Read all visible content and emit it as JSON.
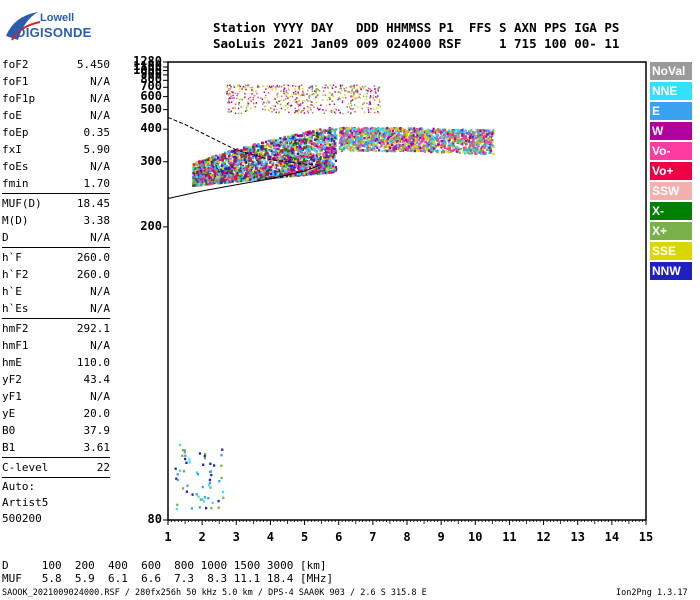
{
  "logo": {
    "line1": "Lowell",
    "line2": "DIGISONDE"
  },
  "header": {
    "line1": "Station YYYY DAY   DDD HHMMSS P1  FFS S AXN PPS IGA PS",
    "line2": "SaoLuis 2021 Jan09 009 024000 RSF     1 715 100 00- 11"
  },
  "params": {
    "group1": [
      {
        "k": "foF2",
        "v": "5.450"
      },
      {
        "k": "foF1",
        "v": "N/A"
      },
      {
        "k": "foF1p",
        "v": "N/A"
      },
      {
        "k": "foE",
        "v": "N/A"
      },
      {
        "k": "foEp",
        "v": "0.35"
      },
      {
        "k": "fxI",
        "v": "5.90"
      },
      {
        "k": "foEs",
        "v": "N/A"
      },
      {
        "k": "fmin",
        "v": "1.70"
      }
    ],
    "group2": [
      {
        "k": "MUF(D)",
        "v": "18.45"
      },
      {
        "k": "M(D)",
        "v": "3.38"
      },
      {
        "k": "D",
        "v": "N/A"
      }
    ],
    "group3": [
      {
        "k": "h`F",
        "v": "260.0"
      },
      {
        "k": "h`F2",
        "v": "260.0"
      },
      {
        "k": "h`E",
        "v": "N/A"
      },
      {
        "k": "h`Es",
        "v": "N/A"
      }
    ],
    "group4": [
      {
        "k": "hmF2",
        "v": "292.1"
      },
      {
        "k": "hmF1",
        "v": "N/A"
      },
      {
        "k": "hmE",
        "v": "110.0"
      },
      {
        "k": "yF2",
        "v": "43.4"
      },
      {
        "k": "yF1",
        "v": "N/A"
      },
      {
        "k": "yE",
        "v": "20.0"
      },
      {
        "k": "B0",
        "v": "37.9"
      },
      {
        "k": "B1",
        "v": "3.61"
      }
    ],
    "group5": [
      {
        "k": "C-level",
        "v": "22"
      }
    ],
    "auto": {
      "line1": "Auto:",
      "line2": "Artist5",
      "line3": "500200"
    }
  },
  "legend": [
    {
      "label": "NoVal",
      "color": "#9a9a9a"
    },
    {
      "label": "NNE",
      "color": "#33e0ff"
    },
    {
      "label": "E",
      "color": "#3aa0f0"
    },
    {
      "label": "W",
      "color": "#b0009e"
    },
    {
      "label": "Vo-",
      "color": "#ff3aa0"
    },
    {
      "label": "Vo+",
      "color": "#ee0044"
    },
    {
      "label": "SSW",
      "color": "#f4b0b0"
    },
    {
      "label": "X-",
      "color": "#008000"
    },
    {
      "label": "X+",
      "color": "#7ab04a"
    },
    {
      "label": "SSE",
      "color": "#d8d800"
    },
    {
      "label": "NNW",
      "color": "#2020c0"
    }
  ],
  "chart_data": {
    "type": "scatter",
    "title": "",
    "xlabel": "",
    "ylabel": "",
    "xlim": [
      1,
      15
    ],
    "ylim": [
      80,
      1280
    ],
    "xticks": [
      1,
      2,
      3,
      4,
      5,
      6,
      7,
      8,
      9,
      10,
      11,
      12,
      13,
      14,
      15
    ],
    "yticks": [
      80,
      200,
      300,
      400,
      500,
      600,
      700,
      800,
      900,
      1000,
      1100,
      1280
    ],
    "grid": false,
    "y_scale": "reciprocal",
    "series": [
      {
        "type": "F-trace",
        "x_range": [
          1.7,
          5.9
        ],
        "y_range": [
          250,
          420
        ],
        "colors": [
          "Vo-",
          "Vo+",
          "W",
          "X-",
          "X+",
          "SSE",
          "NNE",
          "E",
          "NNW"
        ]
      },
      {
        "type": "F-trace extended",
        "x_range": [
          6.0,
          10.5
        ],
        "y_range": [
          320,
          420
        ],
        "colors": [
          "W",
          "Vo-",
          "E",
          "NNE",
          "X+",
          "SSE"
        ]
      },
      {
        "type": "multi-hop",
        "x_range": [
          2.7,
          7.2
        ],
        "y_range": [
          480,
          740
        ],
        "colors": [
          "W",
          "Vo-",
          "SSE",
          "X+"
        ]
      },
      {
        "type": "low-level",
        "x_range": [
          1.1,
          2.6
        ],
        "y_range": [
          82,
          95
        ],
        "colors": [
          "NNW",
          "E",
          "NNE",
          "X+"
        ]
      }
    ],
    "fitted_curves": [
      {
        "name": "lower",
        "points": [
          [
            1,
            234
          ],
          [
            2,
            245
          ],
          [
            3,
            255
          ],
          [
            4,
            265
          ],
          [
            5,
            280
          ],
          [
            5.45,
            292
          ]
        ]
      },
      {
        "name": "upper",
        "points": [
          [
            1,
            455
          ],
          [
            1.5,
            420
          ],
          [
            2,
            385
          ],
          [
            2.5,
            355
          ],
          [
            3,
            330
          ],
          [
            4,
            305
          ],
          [
            5,
            295
          ],
          [
            5.45,
            292
          ]
        ]
      }
    ]
  },
  "footer": {
    "line1": "D     100  200  400  600  800 1000 1500 3000 [km]",
    "line2": "MUF   5.8  5.9  6.1  6.6  7.3  8.3 11.1 18.4 [MHz]",
    "line3": "SAOOK_2021009024000.RSF / 280fx256h 50 kHz 5.0 km / DPS-4 SAA0K 903 / 2.6 S 315.8 E",
    "version": "Ion2Png 1.3.17"
  }
}
